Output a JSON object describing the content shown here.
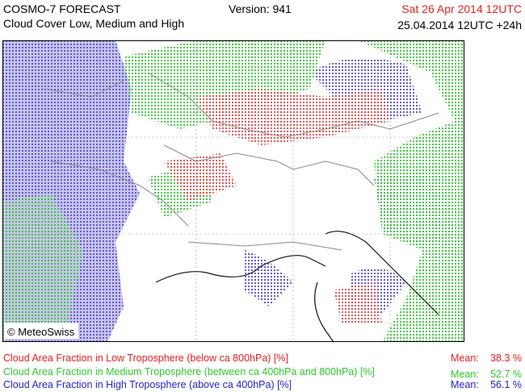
{
  "header": {
    "title": "COSMO-7 FORECAST",
    "subtitle": "Cloud Cover Low, Medium and High",
    "version": "Version: 941",
    "valid_time": "Sat 26 Apr 2014 12UTC",
    "run": "25.04.2014 12UTC +24h"
  },
  "map": {
    "copyright": "© MeteoSwiss"
  },
  "legend": [
    {
      "label": "Cloud Area Fraction in Low Troposphere (below ca 800hPa) [%]",
      "mean_label": "Mean:",
      "mean": "38.3 %"
    },
    {
      "label": "Cloud Area Fraction in Medium Troposphere (between ca 400hPa and 800hPa) [%]",
      "mean_label": "Mean:",
      "mean": "52.7 %"
    },
    {
      "label": "Cloud Area Fraction in High Troposphere (above ca 400hPa) [%]",
      "mean_label": "Mean:",
      "mean": "56.1 %"
    }
  ]
}
